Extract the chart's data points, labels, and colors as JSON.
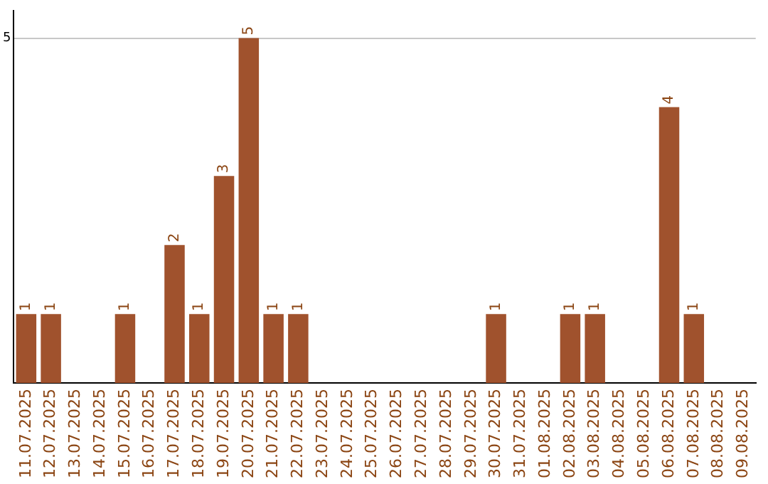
{
  "chart_data": {
    "type": "bar",
    "categories": [
      "11.07.2025",
      "12.07.2025",
      "13.07.2025",
      "14.07.2025",
      "15.07.2025",
      "16.07.2025",
      "17.07.2025",
      "18.07.2025",
      "19.07.2025",
      "20.07.2025",
      "21.07.2025",
      "22.07.2025",
      "23.07.2025",
      "24.07.2025",
      "25.07.2025",
      "26.07.2025",
      "27.07.2025",
      "28.07.2025",
      "29.07.2025",
      "30.07.2025",
      "31.07.2025",
      "01.08.2025",
      "02.08.2025",
      "03.08.2025",
      "04.08.2025",
      "05.08.2025",
      "06.08.2025",
      "07.08.2025",
      "08.08.2025",
      "09.08.2025"
    ],
    "values": [
      1,
      1,
      0,
      0,
      1,
      0,
      2,
      1,
      3,
      5,
      1,
      1,
      0,
      0,
      0,
      0,
      0,
      0,
      0,
      1,
      0,
      0,
      1,
      1,
      0,
      0,
      4,
      1,
      0,
      0
    ],
    "value_labels": [
      "1",
      "1",
      null,
      null,
      "1",
      null,
      "2",
      "1",
      "3",
      "5",
      "1",
      "1",
      null,
      null,
      null,
      null,
      null,
      null,
      null,
      "1",
      null,
      null,
      "1",
      "1",
      null,
      null,
      "4",
      "1",
      null,
      null
    ],
    "color": "#a0522d",
    "ylim": [
      0,
      5.4
    ],
    "yticks": [
      5
    ],
    "grid": "y",
    "legend": false
  }
}
